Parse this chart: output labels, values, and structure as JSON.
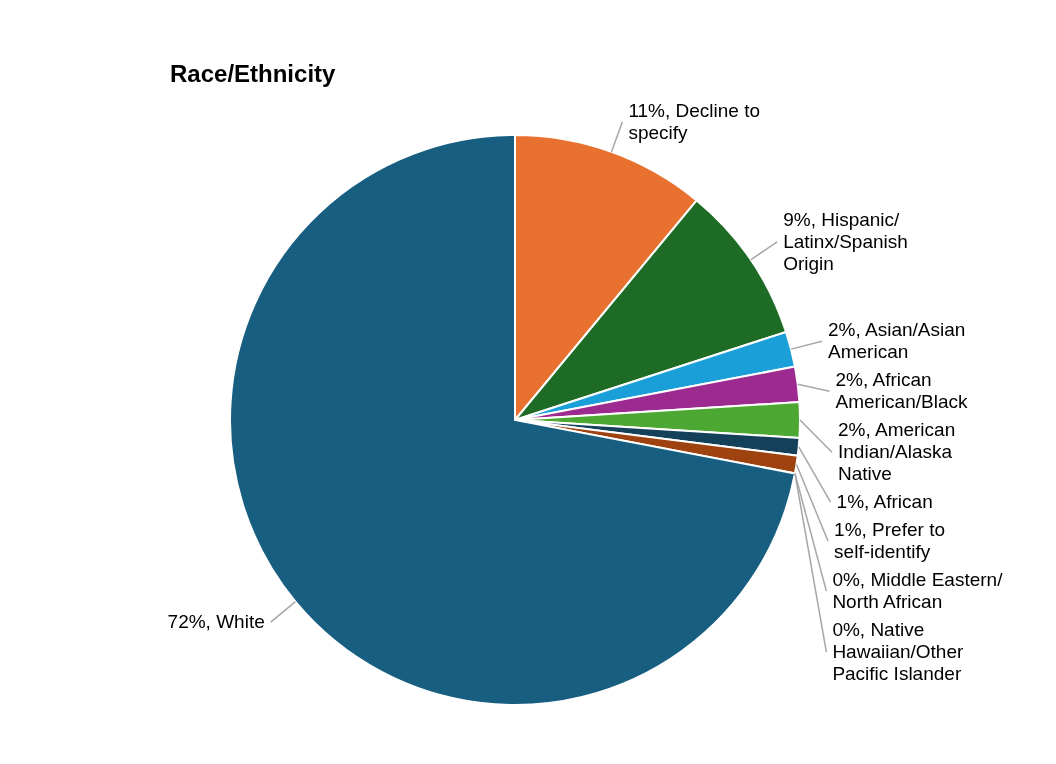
{
  "chart_data": {
    "type": "pie",
    "title": "Race/Ethnicity",
    "categories": [
      "Decline to specify",
      "Hispanic/Latinx/Spanish Origin",
      "Asian/Asian American",
      "African American/Black",
      "American Indian/Alaska Native",
      "African",
      "Prefer to self-identify",
      "Middle Eastern/North African",
      "Native Hawaiian/Other Pacific Islander",
      "White"
    ],
    "values": [
      11,
      9,
      2,
      2,
      2,
      1,
      1,
      0,
      0,
      72
    ],
    "value_labels": [
      "11%,",
      "9%,",
      "2%,",
      "2%,",
      "2%,",
      "1%,",
      "1%,",
      "0%,",
      "0%,",
      "72%,"
    ],
    "colors": [
      "#e8712f",
      "#1e6b25",
      "#1a9fd9",
      "#9c2a8f",
      "#4ca832",
      "#14405a",
      "#9e4210",
      "#1d5225",
      "#8ab8d8",
      "#175e80"
    ]
  }
}
